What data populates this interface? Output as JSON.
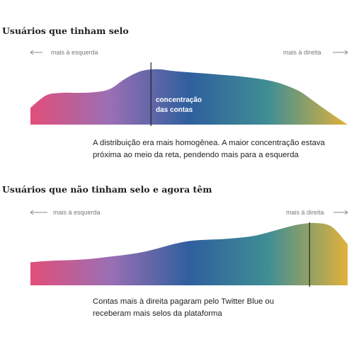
{
  "colors": {
    "gradient": [
      "#e24e7a",
      "#9b6fb4",
      "#2f5f9e",
      "#3f8e94",
      "#e0b13a"
    ],
    "marker": "#222222",
    "arrow": "#8a8a8a"
  },
  "chart_data": [
    {
      "type": "area",
      "title": "Usuários que tinham selo",
      "left_label": "mais à esquerda",
      "right_label": "mais à direita",
      "annotation": "concentração das contas",
      "annotation_lines": [
        "concentração",
        "das contas"
      ],
      "caption": "A distribuição era mais homogênea. A maior concentração estava próxima ao meio da reta, pendendo mais para a esquerda",
      "x": [
        0,
        0.05,
        0.1,
        0.15,
        0.2,
        0.25,
        0.3,
        0.35,
        0.4,
        0.45,
        0.5,
        0.55,
        0.6,
        0.65,
        0.7,
        0.75,
        0.8,
        0.85,
        0.9,
        0.95,
        1.0
      ],
      "y": [
        0.27,
        0.47,
        0.51,
        0.51,
        0.52,
        0.57,
        0.74,
        0.86,
        0.89,
        0.86,
        0.84,
        0.82,
        0.8,
        0.78,
        0.75,
        0.71,
        0.64,
        0.53,
        0.35,
        0.17,
        0.0
      ],
      "marker_x": 0.38,
      "ylim": [
        0,
        1
      ]
    },
    {
      "type": "area",
      "title": "Usuários que não tinham selo e agora têm",
      "left_label": "mais à esquerda",
      "right_label": "mais à direita",
      "caption": "Contas mais à direita pagaram pelo Twitter Blue ou receberam mais selos da plataforma",
      "x": [
        0,
        0.05,
        0.1,
        0.15,
        0.2,
        0.25,
        0.3,
        0.35,
        0.4,
        0.45,
        0.5,
        0.55,
        0.6,
        0.65,
        0.7,
        0.75,
        0.8,
        0.85,
        0.9,
        0.95,
        1.0
      ],
      "y": [
        0.37,
        0.39,
        0.4,
        0.41,
        0.43,
        0.46,
        0.49,
        0.53,
        0.59,
        0.66,
        0.71,
        0.73,
        0.74,
        0.76,
        0.79,
        0.85,
        0.92,
        0.98,
        1.0,
        0.94,
        0.66
      ],
      "marker_x": 0.88,
      "ylim": [
        0,
        1
      ]
    }
  ]
}
